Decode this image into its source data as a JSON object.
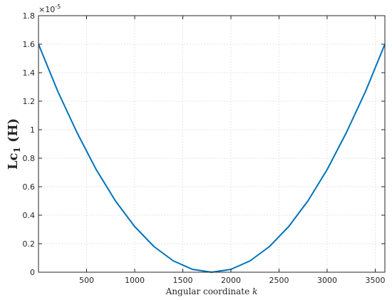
{
  "chart_data": {
    "type": "line",
    "xlabel": {
      "text": "Angular coordinate",
      "var": "k"
    },
    "ylabel": {
      "main": "Lc",
      "sub": "1",
      "unit": "(H)"
    },
    "y_exponent": {
      "base": "×10",
      "power": "-5"
    },
    "xlim": [
      0,
      3600
    ],
    "ylim": [
      0,
      1.8
    ],
    "y_scale_factor": 1e-05,
    "xticks": [
      500,
      1000,
      1500,
      2000,
      2500,
      3000,
      3500
    ],
    "yticks": [
      0,
      0.2,
      0.4,
      0.6,
      0.8,
      1,
      1.2,
      1.4,
      1.6,
      1.8
    ],
    "grid": true,
    "line_color": "#0072BD",
    "series": [
      {
        "x": [
          0,
          200,
          400,
          600,
          800,
          1000,
          1200,
          1400,
          1600,
          1800,
          2000,
          2200,
          2400,
          2600,
          2800,
          3000,
          3200,
          3400,
          3600
        ],
        "y": [
          1.6,
          1.27,
          0.98,
          0.72,
          0.5,
          0.32,
          0.18,
          0.08,
          0.02,
          0.0,
          0.02,
          0.08,
          0.18,
          0.32,
          0.5,
          0.72,
          0.98,
          1.27,
          1.6
        ]
      }
    ]
  }
}
